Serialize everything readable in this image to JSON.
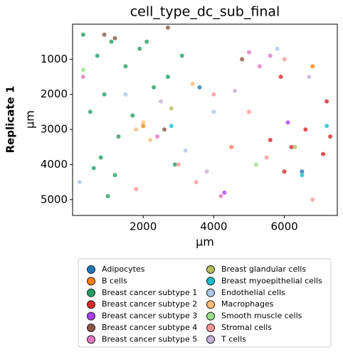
{
  "chart_data": {
    "type": "scatter",
    "title": "cell_type_dc_sub_final",
    "row_label": "Replicate 1",
    "x_label": "µm",
    "y_label": "µm",
    "xlim": [
      0,
      7500
    ],
    "ylim": [
      5450,
      0
    ],
    "xticks": [
      2000,
      4000,
      6000
    ],
    "yticks": [
      1000,
      2000,
      3000,
      4000,
      5000
    ],
    "series": [
      {
        "name": "Adipocytes",
        "color": "#1f77b4",
        "x": [
          3600,
          6500
        ],
        "y": [
          1800,
          4200
        ]
      },
      {
        "name": "B cells",
        "color": "#ff7f0e",
        "x": [
          2000,
          4500,
          6800
        ],
        "y": [
          2900,
          3500,
          1200
        ]
      },
      {
        "name": "Breast cancer subtype 1",
        "color": "#279e68",
        "x": [
          300,
          700,
          1100,
          1500,
          1900,
          2300,
          2700,
          3100,
          500,
          900,
          1300,
          1700,
          2100,
          800,
          1200,
          1000,
          600,
          2900
        ],
        "y": [
          300,
          900,
          500,
          1200,
          700,
          1800,
          1500,
          900,
          2500,
          2000,
          3200,
          2600,
          500,
          3800,
          4300,
          4900,
          4100,
          4000
        ]
      },
      {
        "name": "Breast cancer subtype 2",
        "color": "#d62728",
        "x": [
          5600,
          6200,
          6600,
          7200,
          7300,
          6000,
          5900,
          7100
        ],
        "y": [
          3300,
          3500,
          3000,
          2200,
          3200,
          4200,
          1500,
          3700
        ]
      },
      {
        "name": "Breast cancer subtype 3",
        "color": "#aa40fc",
        "x": [
          4300,
          6100
        ],
        "y": [
          4800,
          2800
        ]
      },
      {
        "name": "Breast cancer subtype 4",
        "color": "#8c564b",
        "x": [
          900,
          1200,
          2600,
          2700,
          4800
        ],
        "y": [
          300,
          400,
          3000,
          100,
          1000
        ]
      },
      {
        "name": "Breast cancer subtype 5",
        "color": "#e377c2",
        "x": [
          5300,
          5600,
          2400,
          4200,
          5000,
          300
        ],
        "y": [
          1200,
          900,
          3200,
          4900,
          800,
          1500
        ]
      },
      {
        "name": "Breast glandular cells",
        "color": "#b5bd61",
        "x": [
          6300,
          2800
        ],
        "y": [
          3500,
          2400
        ]
      },
      {
        "name": "Breast myoepithelial cells",
        "color": "#17becf",
        "x": [
          6500,
          7200,
          2800
        ],
        "y": [
          4300,
          2900,
          2900
        ]
      },
      {
        "name": "Endothelial cells",
        "color": "#aec7e8",
        "x": [
          4000,
          3200,
          1500,
          5800,
          200
        ],
        "y": [
          2500,
          3600,
          2000,
          700,
          4500
        ]
      },
      {
        "name": "Macrophages",
        "color": "#ffbb78",
        "x": [
          2000,
          2200,
          1800,
          3400
        ],
        "y": [
          2800,
          3300,
          3000,
          1700
        ]
      },
      {
        "name": "Smooth muscle cells",
        "color": "#98df8a",
        "x": [
          300,
          5200
        ],
        "y": [
          1300,
          4000
        ]
      },
      {
        "name": "Stromal cells",
        "color": "#ff9896",
        "x": [
          3500,
          4500,
          5500,
          3000,
          6800,
          1800,
          4000,
          5000,
          6000
        ],
        "y": [
          4500,
          3500,
          3800,
          4000,
          5000,
          4700,
          2000,
          2500,
          1000
        ]
      },
      {
        "name": "T cells",
        "color": "#c5b0d5",
        "x": [
          2500,
          6700,
          4600,
          3800
        ],
        "y": [
          2200,
          1500,
          1900,
          4200
        ]
      }
    ]
  }
}
